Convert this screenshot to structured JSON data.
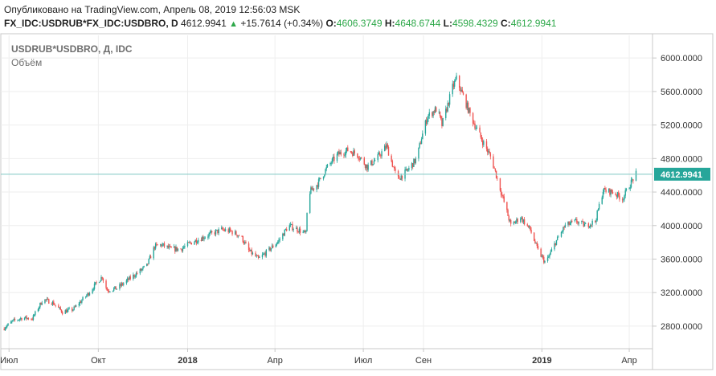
{
  "published": "Опубликовано на TradingView.com, Апрель 08, 2019 12:56:03 MSK",
  "ohlc": {
    "symbol": "FX_IDC:USDRUB*FX_IDC:USDBRO, D",
    "last": "4612.9941",
    "change_arrow": "▲",
    "change": "+15.7614 (+0.34%)",
    "o_label": "O:",
    "o": "4606.3749",
    "h_label": "H:",
    "h": "4648.6744",
    "l_label": "L:",
    "l": "4598.4329",
    "c_label": "C:",
    "c": "4612.9941"
  },
  "colors": {
    "up": "#26a69a",
    "down": "#ef5350",
    "price_line": "#7fc8c3",
    "price_label_bg": "#26a69a",
    "grid": "#eeeeee",
    "axis": "#c8c8c8"
  },
  "chart_data": {
    "type": "candlestick",
    "title": "USDRUB*USDBRO, Д, IDC",
    "subtitle": "Объём",
    "ylim": [
      2550,
      6270
    ],
    "yticks": [
      2800,
      3200,
      3600,
      4000,
      4400,
      4800,
      5200,
      5600,
      6000
    ],
    "ytick_labels": [
      "2800.0000",
      "3200.0000",
      "3600.0000",
      "4000.0000",
      "4400.0000",
      "4800.0000",
      "5200.0000",
      "5600.0000",
      "6000.0000"
    ],
    "xlim": [
      "2017-06-25",
      "2019-04-20"
    ],
    "xticks": [
      {
        "date": "2017-07-01",
        "label": "Июл",
        "bold": false
      },
      {
        "date": "2017-10-01",
        "label": "Окт",
        "bold": false
      },
      {
        "date": "2018-01-01",
        "label": "2018",
        "bold": true
      },
      {
        "date": "2018-04-01",
        "label": "Апр",
        "bold": false
      },
      {
        "date": "2018-07-01",
        "label": "Июл",
        "bold": false
      },
      {
        "date": "2018-09-01",
        "label": "Сен",
        "bold": false
      },
      {
        "date": "2019-01-01",
        "label": "2019",
        "bold": true
      },
      {
        "date": "2019-04-01",
        "label": "Апр",
        "bold": false
      }
    ],
    "last_price": 4612.9941,
    "last_price_label": "4612.9941",
    "close_path": [
      [
        "2017-06-25",
        2770
      ],
      [
        "2017-07-05",
        2860
      ],
      [
        "2017-07-15",
        2900
      ],
      [
        "2017-07-25",
        2890
      ],
      [
        "2017-08-05",
        3120
      ],
      [
        "2017-08-15",
        3080
      ],
      [
        "2017-08-25",
        2970
      ],
      [
        "2017-09-05",
        3000
      ],
      [
        "2017-09-20",
        3180
      ],
      [
        "2017-10-01",
        3340
      ],
      [
        "2017-10-05",
        3390
      ],
      [
        "2017-10-10",
        3230
      ],
      [
        "2017-10-20",
        3250
      ],
      [
        "2017-11-05",
        3390
      ],
      [
        "2017-11-20",
        3520
      ],
      [
        "2017-11-28",
        3750
      ],
      [
        "2017-12-05",
        3770
      ],
      [
        "2017-12-15",
        3720
      ],
      [
        "2017-12-25",
        3720
      ],
      [
        "2018-01-05",
        3800
      ],
      [
        "2018-01-15",
        3850
      ],
      [
        "2018-01-25",
        3900
      ],
      [
        "2018-02-05",
        3950
      ],
      [
        "2018-02-15",
        3930
      ],
      [
        "2018-02-25",
        3870
      ],
      [
        "2018-03-05",
        3700
      ],
      [
        "2018-03-15",
        3600
      ],
      [
        "2018-03-25",
        3700
      ],
      [
        "2018-04-05",
        3820
      ],
      [
        "2018-04-15",
        4000
      ],
      [
        "2018-04-25",
        3950
      ],
      [
        "2018-05-03",
        3900
      ],
      [
        "2018-05-05",
        4380
      ],
      [
        "2018-05-15",
        4500
      ],
      [
        "2018-05-25",
        4700
      ],
      [
        "2018-06-05",
        4850
      ],
      [
        "2018-06-15",
        4900
      ],
      [
        "2018-06-25",
        4850
      ],
      [
        "2018-07-05",
        4700
      ],
      [
        "2018-07-15",
        4800
      ],
      [
        "2018-07-25",
        4950
      ],
      [
        "2018-08-05",
        4550
      ],
      [
        "2018-08-15",
        4650
      ],
      [
        "2018-08-25",
        4800
      ],
      [
        "2018-08-30",
        5050
      ],
      [
        "2018-09-05",
        5300
      ],
      [
        "2018-09-15",
        5400
      ],
      [
        "2018-09-20",
        5200
      ],
      [
        "2018-09-25",
        5400
      ],
      [
        "2018-10-01",
        5650
      ],
      [
        "2018-10-05",
        5750
      ],
      [
        "2018-10-10",
        5600
      ],
      [
        "2018-10-20",
        5300
      ],
      [
        "2018-10-30",
        5050
      ],
      [
        "2018-11-10",
        4800
      ],
      [
        "2018-11-20",
        4400
      ],
      [
        "2018-11-30",
        4000
      ],
      [
        "2018-12-10",
        4100
      ],
      [
        "2018-12-20",
        3950
      ],
      [
        "2018-12-28",
        3700
      ],
      [
        "2019-01-05",
        3550
      ],
      [
        "2019-01-15",
        3800
      ],
      [
        "2019-01-25",
        4000
      ],
      [
        "2019-02-05",
        4050
      ],
      [
        "2019-02-15",
        4000
      ],
      [
        "2019-02-25",
        4050
      ],
      [
        "2019-03-05",
        4420
      ],
      [
        "2019-03-15",
        4400
      ],
      [
        "2019-03-25",
        4320
      ],
      [
        "2019-04-05",
        4560
      ],
      [
        "2019-04-08",
        4613
      ]
    ]
  }
}
